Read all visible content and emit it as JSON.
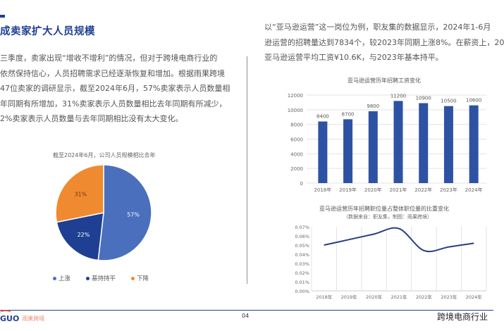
{
  "left": {
    "title": "成卖家扩大人员规模",
    "paragraph_lines": [
      "三季度，卖家出现“增收不增利”的情况，但对于跨境电商行业的",
      "依然保持信心，人员招聘需求已经逐渐恢复和增加。根据雨果跨境",
      "47位卖家的调研显示，截至2024年6月，57%卖家表示人员数量相",
      "年同期有所增加，31%卖家表示人员数量相比去年同期有所减少，",
      "2%卖家表示人员数量与去年同期相比没有太大变化。"
    ]
  },
  "right": {
    "paragraph_lines": [
      "以“亚马逊运营”这一岗位为例，职友集的数据显示，2024年1-6月",
      "逊运营的招聘量达到7834个，较2023年同期上涨8%。在薪资上，20",
      "亚马逊运营平均工资¥10.6K，与2023年基本持平。"
    ]
  },
  "chart_data": [
    {
      "type": "pie",
      "title": "截至2024年6月，公司人员规模相比去年",
      "categories": [
        "上涨",
        "基持持平",
        "下降"
      ],
      "values": [
        57,
        22,
        31
      ],
      "labels": [
        "57%",
        "22%",
        "31%"
      ],
      "colors": [
        "#4a6fbd",
        "#1f3f93",
        "#f08a30"
      ],
      "legend_position": "bottom"
    },
    {
      "type": "bar",
      "title": "亚马逊运营历年招聘工资变化",
      "categories": [
        "2018年",
        "2019年",
        "2020年",
        "2021年",
        "2022年",
        "2023年",
        "2024年"
      ],
      "values": [
        8400,
        8700,
        9800,
        11200,
        10900,
        10500,
        10600
      ],
      "yticks": [
        "0",
        "2000",
        "4000",
        "6000",
        "8000",
        "10000",
        "12000"
      ],
      "ylim": [
        0,
        12000
      ],
      "grid": true,
      "color": "#2e52a3"
    },
    {
      "type": "line",
      "title": "亚马逊运营历年招聘职位量占整体职位量的比重变化",
      "subtitle": "（数据来自：职友集，制图：雨果跨境）",
      "categories": [
        "2018年",
        "2019年",
        "2020年",
        "2021年",
        "2022年",
        "2023年",
        "2024年"
      ],
      "values": [
        0.05,
        0.056,
        0.062,
        0.068,
        0.044,
        0.048,
        0.052
      ],
      "yticks": [
        "0.00%",
        "0.01%",
        "0.02%",
        "0.03%",
        "0.04%",
        "0.05%",
        "0.06%",
        "0.07%"
      ],
      "ylim": [
        0,
        0.07
      ],
      "grid": true,
      "color": "#2a3f7e"
    }
  ],
  "footer": {
    "logo_brand": "GUO",
    "logo_sub": "雨果跨境",
    "page": "04",
    "title": "跨境电商行业"
  }
}
